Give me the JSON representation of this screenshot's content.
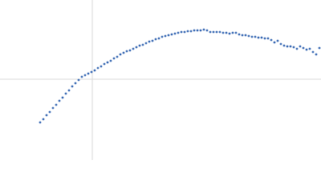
{
  "chart_data": {
    "type": "scatter",
    "color": "#3a6ab4",
    "x": [
      -0.65,
      -0.61,
      -0.57,
      -0.53,
      -0.49,
      -0.45,
      -0.41,
      -0.37,
      -0.33,
      -0.29,
      -0.25,
      -0.21,
      -0.17,
      -0.13,
      -0.09,
      -0.05,
      -0.01,
      0.03,
      0.07,
      0.11,
      0.15,
      0.19,
      0.23,
      0.27,
      0.31,
      0.35,
      0.39,
      0.43,
      0.47,
      0.51,
      0.55,
      0.59,
      0.63,
      0.67,
      0.71,
      0.75,
      0.79,
      0.83,
      0.87,
      0.91,
      0.95,
      0.99,
      1.03,
      1.07,
      1.11,
      1.15,
      1.19,
      1.23,
      1.27,
      1.31,
      1.35,
      1.39,
      1.43,
      1.47,
      1.51,
      1.55,
      1.59,
      1.63,
      1.67,
      1.71,
      1.75,
      1.79,
      1.83,
      1.87,
      1.91,
      1.95,
      1.99,
      2.03,
      2.07,
      2.11,
      2.15,
      2.19,
      2.23,
      2.27,
      2.31,
      2.35,
      2.39,
      2.43,
      2.47,
      2.51,
      2.55,
      2.59,
      2.63,
      2.67,
      2.71,
      2.75,
      2.79,
      2.83
    ],
    "values": [
      -0.54,
      -0.5,
      -0.45,
      -0.41,
      -0.36,
      -0.32,
      -0.27,
      -0.23,
      -0.18,
      -0.14,
      -0.09,
      -0.05,
      -0.01,
      0.03,
      0.05,
      0.07,
      0.09,
      0.11,
      0.14,
      0.16,
      0.19,
      0.21,
      0.23,
      0.26,
      0.28,
      0.31,
      0.33,
      0.35,
      0.36,
      0.38,
      0.4,
      0.42,
      0.43,
      0.45,
      0.47,
      0.48,
      0.5,
      0.51,
      0.53,
      0.54,
      0.55,
      0.56,
      0.57,
      0.58,
      0.59,
      0.59,
      0.6,
      0.6,
      0.61,
      0.61,
      0.61,
      0.62,
      0.61,
      0.59,
      0.59,
      0.59,
      0.59,
      0.58,
      0.58,
      0.57,
      0.58,
      0.58,
      0.56,
      0.55,
      0.55,
      0.54,
      0.53,
      0.53,
      0.52,
      0.52,
      0.51,
      0.51,
      0.49,
      0.46,
      0.48,
      0.44,
      0.42,
      0.41,
      0.41,
      0.4,
      0.38,
      0.41,
      0.39,
      0.37,
      0.38,
      0.34,
      0.31,
      0.39
    ],
    "xlim": [
      -1.15,
      2.85
    ],
    "ylim": [
      -1.01,
      0.99
    ],
    "xticks": [
      0
    ],
    "yticks": [
      0
    ],
    "grid": true,
    "tick_labels": false
  }
}
